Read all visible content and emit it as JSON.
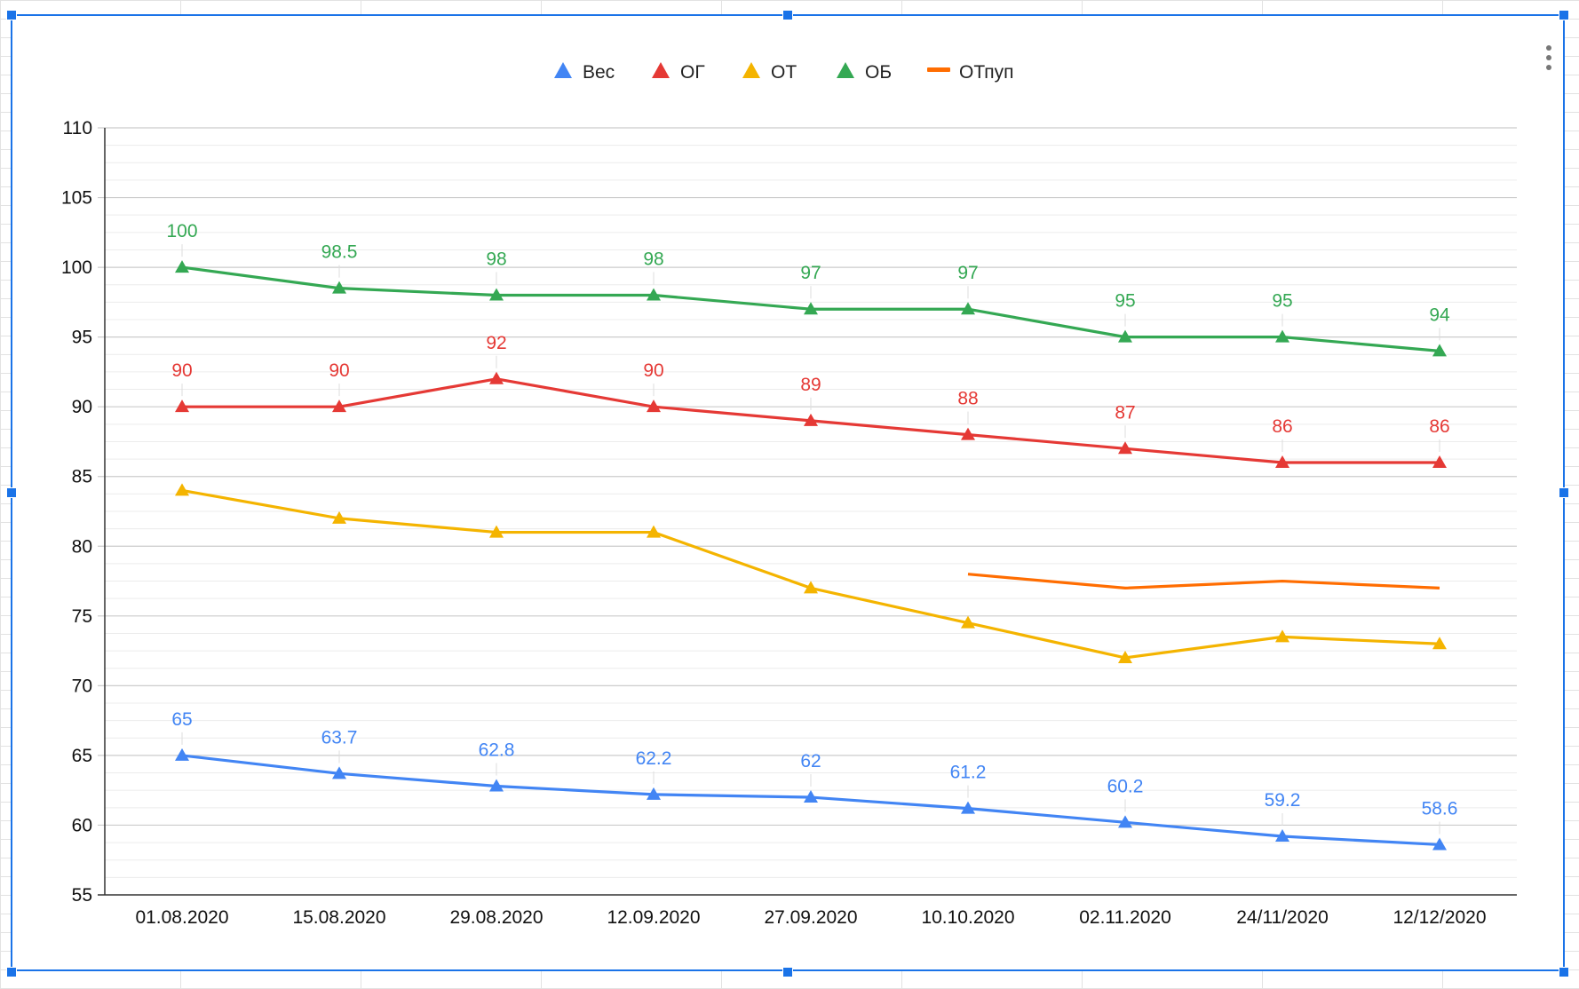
{
  "chart_data": {
    "type": "line",
    "categories": [
      "01.08.2020",
      "15.08.2020",
      "29.08.2020",
      "12.09.2020",
      "27.09.2020",
      "10.10.2020",
      "02.11.2020",
      "24/11/2020",
      "12/12/2020"
    ],
    "ylim": [
      55,
      110
    ],
    "yticks": [
      "55",
      "60",
      "65",
      "70",
      "75",
      "80",
      "85",
      "90",
      "95",
      "100",
      "105",
      "110"
    ],
    "grid": true,
    "legend_position": "top",
    "series": [
      {
        "name": "Вес",
        "color": "#4285f4",
        "marker": "triangle",
        "labels": true,
        "values": [
          65,
          63.7,
          62.8,
          62.2,
          62,
          61.2,
          60.2,
          59.2,
          58.6
        ],
        "display": [
          "65",
          "63.7",
          "62.8",
          "62.2",
          "62",
          "61.2",
          "60.2",
          "59.2",
          "58.6"
        ]
      },
      {
        "name": "ОГ",
        "color": "#e53935",
        "marker": "triangle",
        "labels": true,
        "values": [
          90,
          90,
          92,
          90,
          89,
          88,
          87,
          86,
          86
        ],
        "display": [
          "90",
          "90",
          "92",
          "90",
          "89",
          "88",
          "87",
          "86",
          "86"
        ]
      },
      {
        "name": "ОТ",
        "color": "#f4b400",
        "marker": "triangle",
        "labels": false,
        "values": [
          84,
          82,
          81,
          81,
          77,
          74.5,
          72,
          73.5,
          73
        ],
        "display": []
      },
      {
        "name": "ОБ",
        "color": "#34a853",
        "marker": "triangle",
        "labels": true,
        "values": [
          100,
          98.5,
          98,
          98,
          97,
          97,
          95,
          95,
          94
        ],
        "display": [
          "100",
          "98.5",
          "98",
          "98",
          "97",
          "97",
          "95",
          "95",
          "94"
        ]
      },
      {
        "name": "ОТпуп",
        "color": "#ff6d01",
        "marker": "none",
        "labels": false,
        "values": [
          null,
          null,
          null,
          null,
          null,
          78,
          77,
          77.5,
          77
        ],
        "display": []
      }
    ]
  }
}
